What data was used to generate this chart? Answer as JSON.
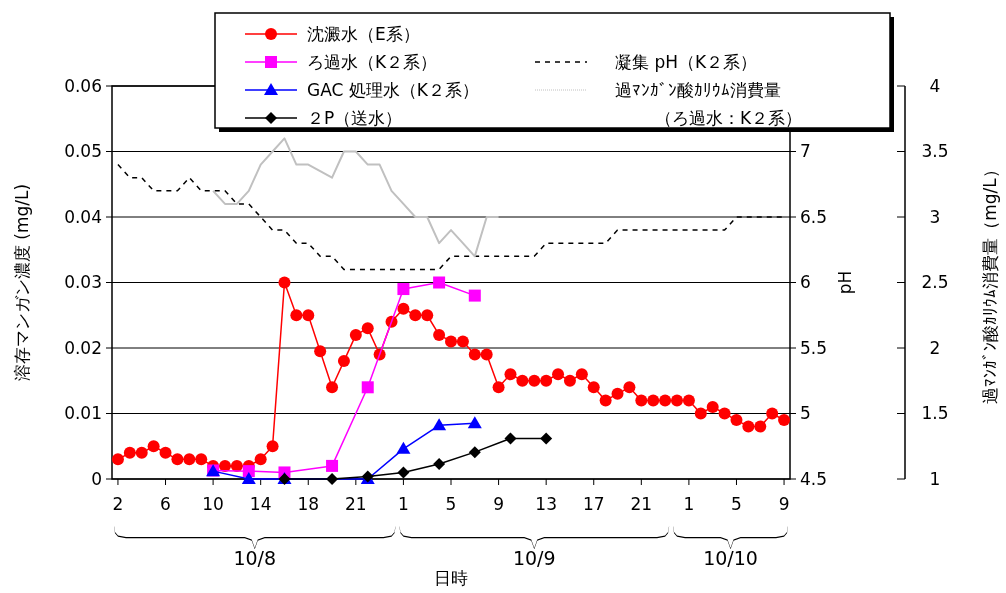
{
  "chart_data": {
    "type": "line",
    "categories": [
      "2",
      null,
      null,
      null,
      "6",
      null,
      null,
      null,
      "10",
      null,
      null,
      null,
      "14",
      null,
      null,
      null,
      "18",
      null,
      null,
      null,
      "21",
      null,
      null,
      null,
      "1",
      null,
      null,
      null,
      "5",
      null,
      null,
      null,
      "9",
      null,
      null,
      null,
      "13",
      null,
      null,
      null,
      "17",
      null,
      null,
      null,
      "21",
      null,
      null,
      null,
      "1",
      null,
      null,
      null,
      "5",
      null,
      null,
      null,
      "9"
    ],
    "series": [
      {
        "name": "沈澱水（E系）",
        "color": "#ff0000",
        "marker": "circle",
        "values": [
          0.003,
          0.004,
          0.004,
          0.005,
          0.004,
          0.003,
          0.003,
          0.003,
          0.002,
          0.002,
          0.002,
          0.002,
          0.003,
          0.005,
          0.03,
          0.025,
          0.025,
          0.0195,
          0.014,
          0.018,
          0.022,
          0.023,
          0.019,
          0.024,
          0.026,
          0.025,
          0.025,
          0.022,
          0.021,
          0.021,
          0.019,
          0.019,
          0.014,
          0.016,
          0.015,
          0.015,
          0.015,
          0.016,
          0.015,
          0.016,
          0.014,
          0.012,
          0.013,
          0.014,
          0.012,
          0.012,
          0.012,
          0.012,
          0.012,
          0.01,
          0.011,
          0.01,
          0.009,
          0.008,
          0.008,
          0.01,
          0.009
        ]
      },
      {
        "name": "ろ過水（K２系）",
        "color": "#ff00ff",
        "marker": "square",
        "values": [
          null,
          null,
          null,
          null,
          null,
          null,
          null,
          null,
          0.0013,
          null,
          null,
          0.0012,
          null,
          null,
          0.001,
          null,
          null,
          null,
          0.002,
          null,
          null,
          0.014,
          null,
          null,
          0.029,
          null,
          null,
          0.03,
          null,
          null,
          0.028,
          null,
          null,
          null,
          null,
          null,
          null,
          null,
          null,
          null,
          null,
          null,
          null,
          null,
          null,
          null,
          null,
          null,
          null,
          null,
          null,
          null,
          null,
          null,
          null,
          null,
          null
        ]
      },
      {
        "name": "GAC 処理水（K２系）",
        "color": "#0000ff",
        "marker": "triangle",
        "values": [
          null,
          null,
          null,
          null,
          null,
          null,
          null,
          null,
          0.0012,
          null,
          null,
          0,
          null,
          null,
          0,
          null,
          null,
          null,
          null,
          null,
          null,
          0,
          null,
          null,
          0.0046,
          null,
          null,
          0.0082,
          null,
          null,
          0.0085,
          null,
          null,
          null,
          null,
          null,
          null,
          null,
          null,
          null,
          null,
          null,
          null,
          null,
          null,
          null,
          null,
          null,
          null,
          null,
          null,
          null,
          null,
          null,
          null,
          null,
          null
        ]
      },
      {
        "name": "２P（送水）",
        "color": "#000000",
        "marker": "diamond",
        "values": [
          null,
          null,
          null,
          null,
          null,
          null,
          null,
          null,
          null,
          null,
          null,
          null,
          null,
          null,
          0,
          null,
          null,
          null,
          0,
          null,
          null,
          0.0004,
          null,
          null,
          0.001,
          null,
          null,
          0.0023,
          null,
          null,
          0.0041,
          null,
          null,
          0.0062,
          null,
          null,
          0.0062,
          null,
          null,
          null,
          null,
          null,
          null,
          null,
          null,
          null,
          null,
          null,
          null,
          null,
          null,
          null,
          null,
          null,
          null,
          null,
          null
        ]
      },
      {
        "name": "凝集 pH（K２系）",
        "color": "#000000",
        "axis": "y2",
        "marker": "none",
        "line_style": "dashed",
        "values": [
          6.9,
          6.8,
          6.8,
          6.7,
          6.7,
          6.7,
          6.8,
          6.7,
          6.7,
          6.7,
          6.6,
          6.6,
          6.5,
          6.4,
          6.4,
          6.3,
          6.3,
          6.2,
          6.2,
          6.1,
          6.1,
          6.1,
          6.1,
          6.1,
          6.1,
          6.1,
          6.1,
          6.1,
          6.2,
          6.2,
          6.2,
          6.2,
          6.2,
          6.2,
          6.2,
          6.2,
          6.3,
          6.3,
          6.3,
          6.3,
          6.3,
          6.3,
          6.4,
          6.4,
          6.4,
          6.4,
          6.4,
          6.4,
          6.4,
          6.4,
          6.4,
          6.4,
          6.5,
          6.5,
          6.5,
          6.5,
          6.5
        ]
      },
      {
        "name": "過ﾏﾝｶﾞﾝ酸ｶﾘｳﾑ消費量（ろ過水：K２系）",
        "color": "#c0c0c0",
        "axis": "y3",
        "marker": "none",
        "values": [
          null,
          null,
          null,
          null,
          null,
          null,
          null,
          null,
          3.2,
          3.1,
          3.1,
          3.2,
          3.4,
          3.5,
          3.6,
          3.4,
          3.4,
          3.35,
          3.3,
          3.5,
          3.5,
          3.4,
          3.4,
          3.2,
          3.1,
          3.0,
          3.0,
          2.8,
          2.9,
          2.8,
          2.7,
          3.0,
          3.0,
          null,
          null,
          null,
          null,
          null,
          null,
          null,
          null,
          null,
          null,
          null,
          null,
          null,
          null,
          null,
          null,
          null,
          null,
          null,
          null,
          null,
          null,
          null,
          null
        ]
      }
    ],
    "xlabel": "日時",
    "ylabel": "溶存マンガン濃度 (mg/L)",
    "y2label": "pH",
    "y3label": "過ﾏﾝｶﾞﾝ酸ｶﾘｳﾑ消費量（mg/L）",
    "ylim": [
      0,
      0.06
    ],
    "yticks": [
      0,
      0.01,
      0.02,
      0.03,
      0.04,
      0.05,
      0.06
    ],
    "y2lim": [
      4.5,
      7.5
    ],
    "y2ticks": [
      4.5,
      5,
      5.5,
      6,
      6.5,
      7
    ],
    "y3lim": [
      1,
      4
    ],
    "y3ticks": [
      1,
      1.5,
      2,
      2.5,
      3,
      3.5,
      4
    ],
    "annotations": [
      "10/8",
      "10/9",
      "10/10"
    ],
    "grid": "y",
    "legend": "top"
  }
}
